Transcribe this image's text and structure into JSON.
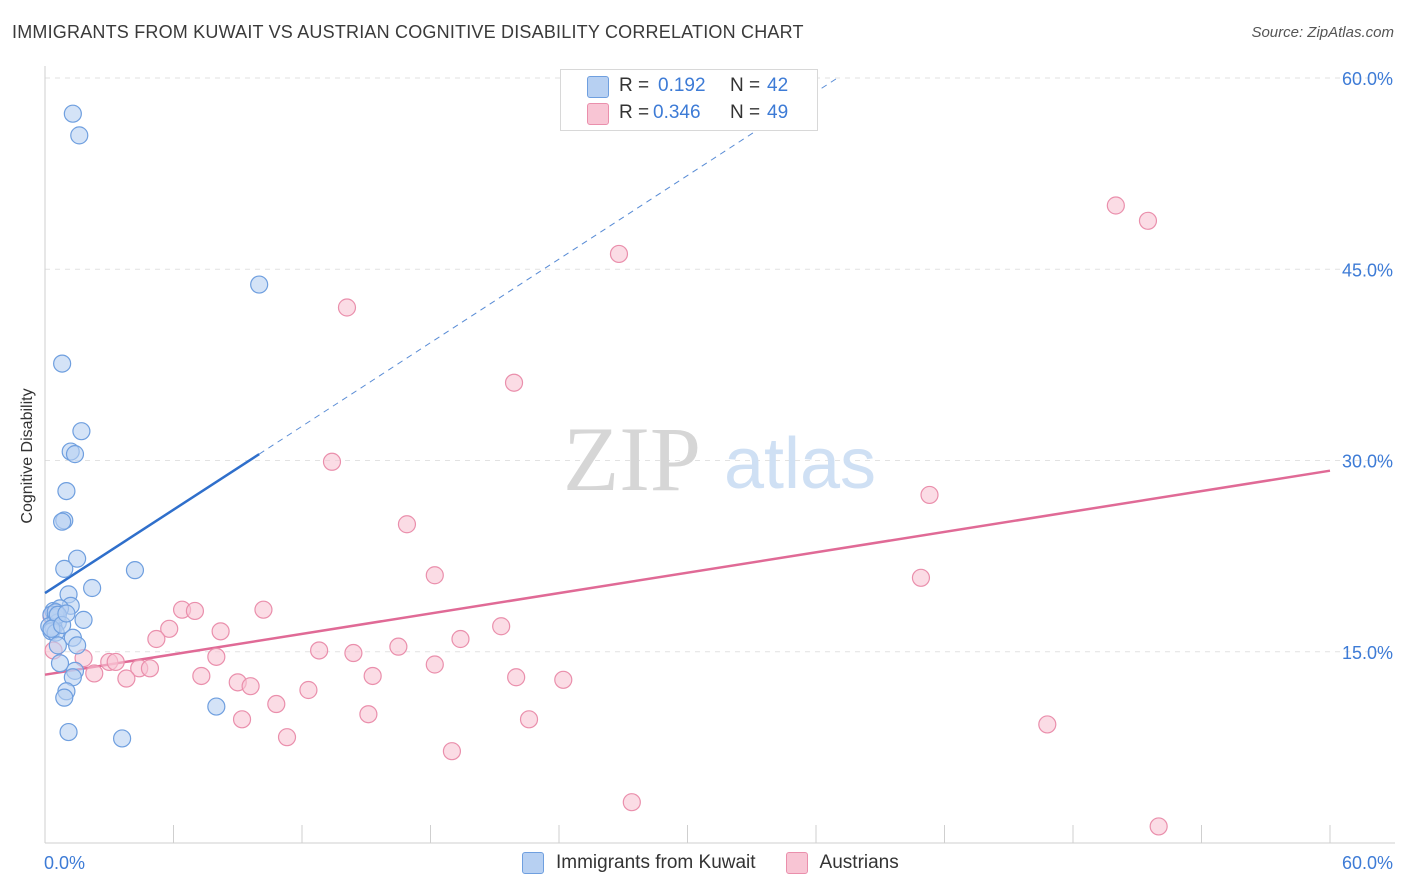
{
  "title": "IMMIGRANTS FROM KUWAIT VS AUSTRIAN COGNITIVE DISABILITY CORRELATION CHART",
  "source": "Source: ZipAtlas.com",
  "watermark": {
    "part1": "ZIP",
    "part2": "atlas"
  },
  "colors": {
    "blue_fill": "#b7d0f2",
    "blue_stroke": "#6f9fdf",
    "blue_line": "#2f6fcb",
    "pink_fill": "#f8c5d4",
    "pink_stroke": "#ea8fac",
    "pink_line": "#e06a96",
    "tick_label": "#3d7bd6",
    "grid": "#e2e2e2"
  },
  "stats_legend": {
    "r_label": "R =",
    "n_label": "N =",
    "series": [
      {
        "r": "0.192",
        "n": "42"
      },
      {
        "r": "0.346",
        "n": "49"
      }
    ]
  },
  "bottom_legend": [
    "Immigrants from Kuwait",
    "Austrians"
  ],
  "chart_data": {
    "type": "scatter",
    "title": "IMMIGRANTS FROM KUWAIT VS AUSTRIAN COGNITIVE DISABILITY CORRELATION CHART",
    "xlabel": "",
    "ylabel": "Cognitive Disability",
    "xlim": [
      0,
      60
    ],
    "ylim": [
      0,
      60
    ],
    "x_tick_labels": [
      "0.0%",
      "60.0%"
    ],
    "y_ticks": [
      15,
      30,
      45,
      60
    ],
    "y_tick_labels": [
      "15.0%",
      "30.0%",
      "45.0%",
      "60.0%"
    ],
    "grid": true,
    "legend": "top-center",
    "series": [
      {
        "name": "Immigrants from Kuwait",
        "r": 0.192,
        "n": 42,
        "trend": {
          "x_solid": [
            0,
            10
          ],
          "y_solid": [
            19.6,
            30.5
          ],
          "x_dashed_end": 37,
          "y_dashed_end": 60
        },
        "points": [
          [
            1.3,
            57.2
          ],
          [
            1.6,
            55.5
          ],
          [
            10.0,
            43.8
          ],
          [
            0.8,
            37.6
          ],
          [
            1.7,
            32.3
          ],
          [
            1.2,
            30.7
          ],
          [
            1.4,
            30.5
          ],
          [
            1.0,
            27.6
          ],
          [
            0.9,
            25.3
          ],
          [
            0.8,
            25.2
          ],
          [
            1.5,
            22.3
          ],
          [
            0.9,
            21.5
          ],
          [
            4.2,
            21.4
          ],
          [
            2.2,
            20.0
          ],
          [
            1.1,
            19.5
          ],
          [
            1.2,
            18.6
          ],
          [
            0.4,
            18.2
          ],
          [
            0.7,
            18.4
          ],
          [
            0.3,
            17.9
          ],
          [
            0.5,
            17.7
          ],
          [
            0.6,
            17.3
          ],
          [
            1.8,
            17.5
          ],
          [
            0.2,
            17.0
          ],
          [
            0.4,
            16.9
          ],
          [
            0.3,
            16.6
          ],
          [
            0.5,
            16.5
          ],
          [
            1.3,
            16.1
          ],
          [
            0.6,
            15.5
          ],
          [
            1.5,
            15.5
          ],
          [
            0.7,
            14.1
          ],
          [
            1.4,
            13.5
          ],
          [
            1.3,
            13.0
          ],
          [
            1.0,
            11.9
          ],
          [
            0.9,
            11.4
          ],
          [
            8.0,
            10.7
          ],
          [
            1.1,
            8.7
          ],
          [
            3.6,
            8.2
          ],
          [
            0.5,
            18.1
          ],
          [
            0.6,
            17.9
          ],
          [
            0.3,
            16.8
          ],
          [
            0.8,
            17.1
          ],
          [
            1.0,
            18.0
          ]
        ]
      },
      {
        "name": "Austrians",
        "r": 0.346,
        "n": 49,
        "trend": {
          "x_solid": [
            0,
            60
          ],
          "y_solid": [
            13.2,
            29.2
          ]
        },
        "points": [
          [
            50.0,
            50.0
          ],
          [
            51.5,
            48.8
          ],
          [
            26.8,
            46.2
          ],
          [
            14.1,
            42.0
          ],
          [
            21.9,
            36.1
          ],
          [
            13.4,
            29.9
          ],
          [
            41.3,
            27.3
          ],
          [
            16.9,
            25.0
          ],
          [
            18.2,
            21.0
          ],
          [
            40.9,
            20.8
          ],
          [
            6.4,
            18.3
          ],
          [
            7.0,
            18.2
          ],
          [
            10.2,
            18.3
          ],
          [
            21.3,
            17.0
          ],
          [
            5.8,
            16.8
          ],
          [
            8.2,
            16.6
          ],
          [
            19.4,
            16.0
          ],
          [
            5.2,
            16.0
          ],
          [
            12.8,
            15.1
          ],
          [
            14.4,
            14.9
          ],
          [
            16.5,
            15.4
          ],
          [
            8.0,
            14.6
          ],
          [
            1.8,
            14.5
          ],
          [
            3.0,
            14.2
          ],
          [
            3.3,
            14.2
          ],
          [
            4.4,
            13.7
          ],
          [
            4.9,
            13.7
          ],
          [
            2.3,
            13.3
          ],
          [
            18.2,
            14.0
          ],
          [
            7.3,
            13.1
          ],
          [
            15.3,
            13.1
          ],
          [
            22.0,
            13.0
          ],
          [
            24.2,
            12.8
          ],
          [
            3.8,
            12.9
          ],
          [
            9.0,
            12.6
          ],
          [
            9.6,
            12.3
          ],
          [
            12.3,
            12.0
          ],
          [
            10.8,
            10.9
          ],
          [
            15.1,
            10.1
          ],
          [
            9.2,
            9.7
          ],
          [
            22.6,
            9.7
          ],
          [
            46.8,
            9.3
          ],
          [
            11.3,
            8.3
          ],
          [
            19.0,
            7.2
          ],
          [
            27.4,
            3.2
          ],
          [
            52.0,
            1.3
          ],
          [
            0.3,
            17.8
          ],
          [
            0.5,
            18.1
          ],
          [
            0.4,
            15.1
          ]
        ]
      }
    ]
  }
}
